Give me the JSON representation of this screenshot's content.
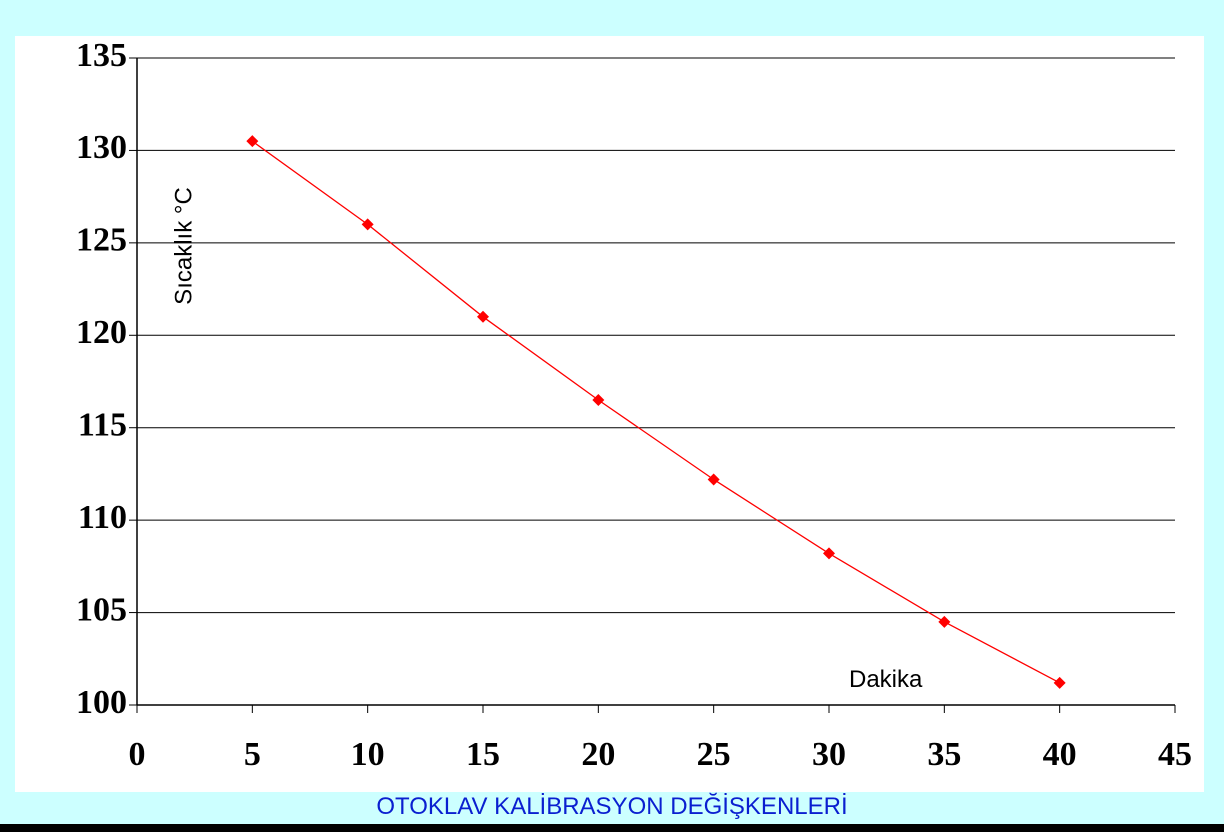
{
  "caption": "OTOKLAV KALİBRASYON DEĞİŞKENLERİ",
  "colors": {
    "background": "#ccffff",
    "series": "#ff0000",
    "caption": "#0a1fd0"
  },
  "chart_data": {
    "type": "line",
    "title": "",
    "xlabel": "Dakika",
    "ylabel": "Sıcaklık °C",
    "xlim": [
      0,
      45
    ],
    "ylim": [
      100,
      135
    ],
    "x_ticks": [
      "0",
      "5",
      "10",
      "15",
      "20",
      "25",
      "30",
      "35",
      "40",
      "45"
    ],
    "y_ticks": [
      "100",
      "105",
      "110",
      "115",
      "120",
      "125",
      "130",
      "135"
    ],
    "grid": "horizontal",
    "marker": "diamond",
    "series": [
      {
        "x": [
          5,
          10,
          15,
          20,
          25,
          30,
          35,
          40
        ],
        "y": [
          130.5,
          126.0,
          121.0,
          116.5,
          112.2,
          108.2,
          104.5,
          101.2
        ]
      }
    ]
  }
}
